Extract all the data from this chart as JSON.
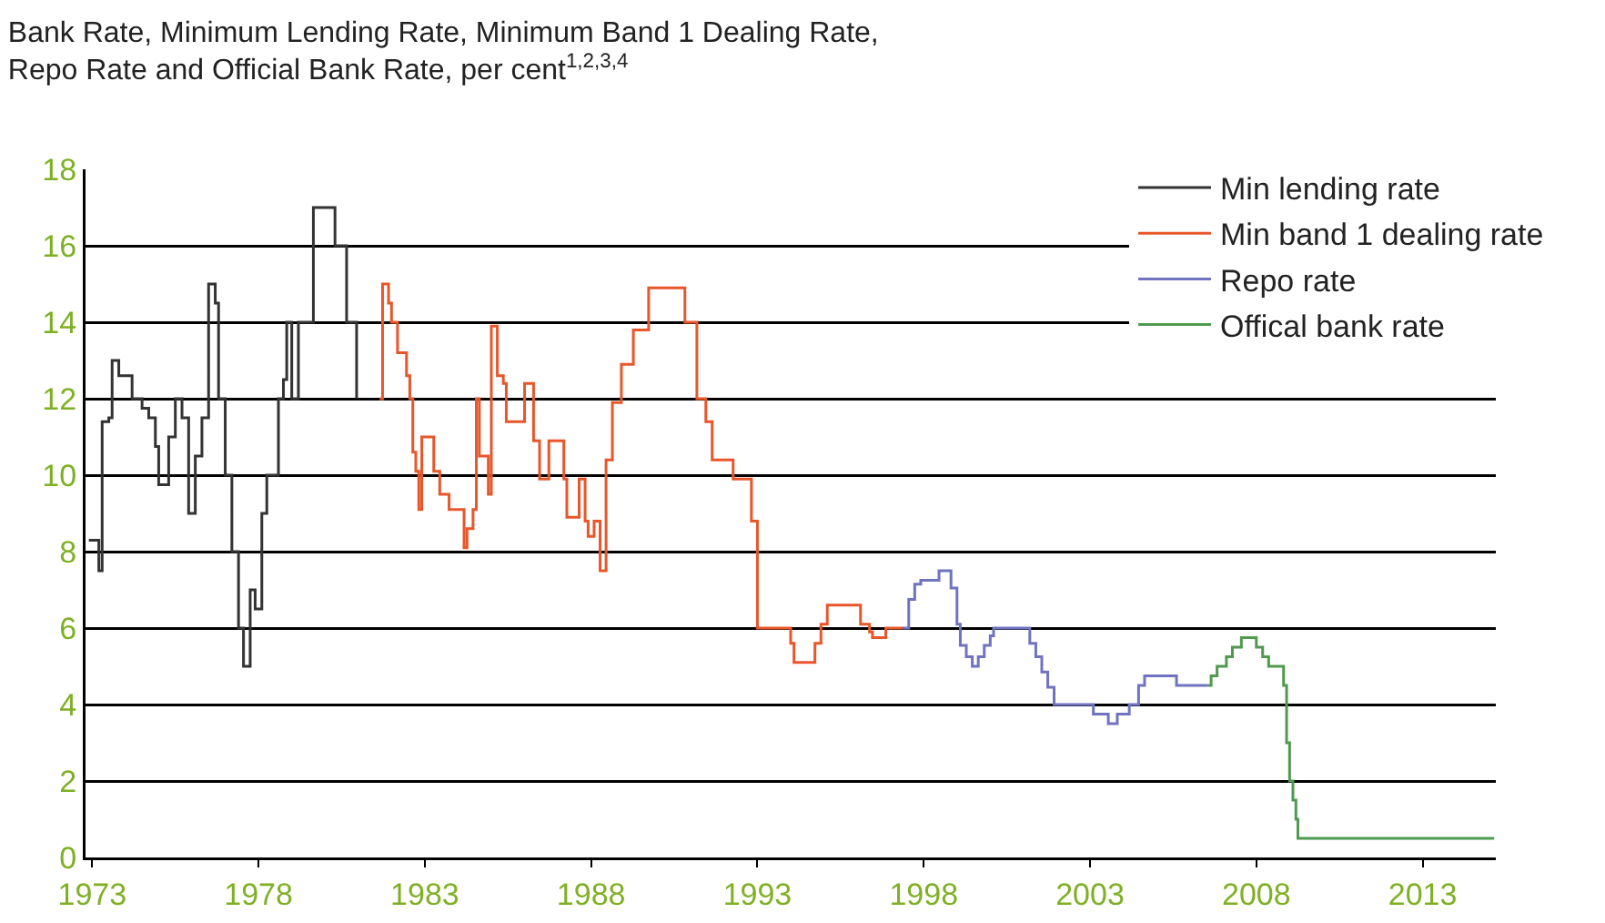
{
  "chart_data": {
    "type": "step",
    "title": "Bank Rate, Minimum Lending Rate, Minimum Band 1 Dealing Rate,\nRepo Rate and Official Bank Rate, per cent$^{1,2,3,4}$",
    "xlim": [
      1972.8,
      2015.2
    ],
    "xticks": [
      1973,
      1978,
      1983,
      1988,
      1993,
      1998,
      2003,
      2008,
      2013
    ],
    "ylim": [
      0,
      18
    ],
    "yticks": [
      0,
      2,
      4,
      6,
      8,
      10,
      12,
      14,
      16,
      18
    ],
    "grid": "y",
    "legend": "top right",
    "line_style": "solid",
    "marker": "none",
    "series": [
      {
        "name": "Min lending rate",
        "color": "#333333",
        "x": [
          1972.9,
          1973.2,
          1973.3,
          1973.5,
          1973.6,
          1973.8,
          1974.2,
          1974.5,
          1974.7,
          1974.9,
          1975.0,
          1975.3,
          1975.5,
          1975.7,
          1975.9,
          1976.1,
          1976.3,
          1976.5,
          1976.7,
          1976.8,
          1977.0,
          1977.2,
          1977.4,
          1977.55,
          1977.75,
          1977.9,
          1978.1,
          1978.25,
          1978.6,
          1978.75,
          1978.85,
          1979.0,
          1979.2,
          1979.65,
          1980.3,
          1980.65,
          1980.95
        ],
        "values": [
          8.3,
          7.5,
          11.4,
          11.5,
          13,
          12.6,
          12,
          11.75,
          11.5,
          10.75,
          9.75,
          11,
          12,
          11.5,
          9,
          10.5,
          11.5,
          15,
          14.5,
          12,
          10,
          8,
          6,
          5,
          7,
          6.5,
          9,
          10,
          12,
          12.5,
          14,
          12,
          14,
          17,
          16,
          14,
          12
        ]
      },
      {
        "name": "Min band 1 dealing rate",
        "color": "#e8562a",
        "x": [
          1981.64,
          1981.73,
          1981.91,
          1982.0,
          1982.18,
          1982.45,
          1982.55,
          1982.64,
          1982.73,
          1982.82,
          1982.91,
          1983.27,
          1983.45,
          1983.73,
          1984.18,
          1984.27,
          1984.45,
          1984.55,
          1984.64,
          1984.91,
          1985.0,
          1985.18,
          1985.36,
          1985.45,
          1986.0,
          1986.27,
          1986.45,
          1986.73,
          1987.18,
          1987.27,
          1987.64,
          1987.82,
          1987.91,
          1988.09,
          1988.27,
          1988.45,
          1988.64,
          1988.91,
          1989.27,
          1989.73,
          1990.82,
          1991.18,
          1991.45,
          1991.64,
          1992.27,
          1992.82,
          1993.0,
          1994.0,
          1994.1,
          1994.73,
          1994.91,
          1995.1,
          1996.1,
          1996.37,
          1996.46,
          1996.86,
          1997.37
        ],
        "values": [
          12,
          15,
          14.5,
          14,
          13.2,
          12.6,
          12,
          10.6,
          10.1,
          9.1,
          11,
          10.1,
          9.5,
          9.1,
          8.1,
          8.6,
          9.1,
          12,
          10.5,
          9.5,
          13.9,
          12.6,
          12.4,
          11.4,
          12.4,
          10.9,
          9.9,
          10.9,
          9.9,
          8.9,
          9.9,
          8.8,
          8.4,
          8.8,
          7.5,
          10.4,
          11.9,
          12.9,
          13.8,
          14.9,
          14,
          12,
          11.4,
          10.4,
          9.9,
          8.8,
          6,
          5.6,
          5.1,
          5.6,
          6.1,
          6.6,
          6.1,
          5.9,
          5.75,
          6,
          6
        ]
      },
      {
        "name": "Repo rate",
        "color": "#6f73c0",
        "x": [
          1997.37,
          1997.55,
          1997.73,
          1997.91,
          1998.46,
          1998.82,
          1999.0,
          1999.1,
          1999.28,
          1999.46,
          1999.64,
          1999.82,
          2000.0,
          2000.1,
          2001.19,
          2001.37,
          2001.55,
          2001.73,
          2001.92,
          2003.1,
          2003.55,
          2003.82,
          2004.18,
          2004.46,
          2004.64,
          2005.6,
          2006.55
        ],
        "values": [
          6,
          6.75,
          7.15,
          7.25,
          7.5,
          7.05,
          6.1,
          5.55,
          5.25,
          5,
          5.25,
          5.55,
          5.8,
          6,
          5.6,
          5.25,
          4.85,
          4.45,
          4,
          3.75,
          3.5,
          3.75,
          4,
          4.5,
          4.75,
          4.5,
          4.5
        ]
      },
      {
        "name": "Offical bank rate",
        "color": "#4f9a4f",
        "x": [
          2006.55,
          2006.64,
          2006.82,
          2007.1,
          2007.28,
          2007.55,
          2008.0,
          2008.19,
          2008.37,
          2008.82,
          2008.91,
          2009.0,
          2009.1,
          2009.19,
          2009.25,
          2015.15
        ],
        "values": [
          4.5,
          4.75,
          5,
          5.25,
          5.5,
          5.75,
          5.5,
          5.25,
          5,
          4.5,
          3,
          2,
          1.5,
          1,
          0.5,
          0.5
        ]
      }
    ]
  }
}
